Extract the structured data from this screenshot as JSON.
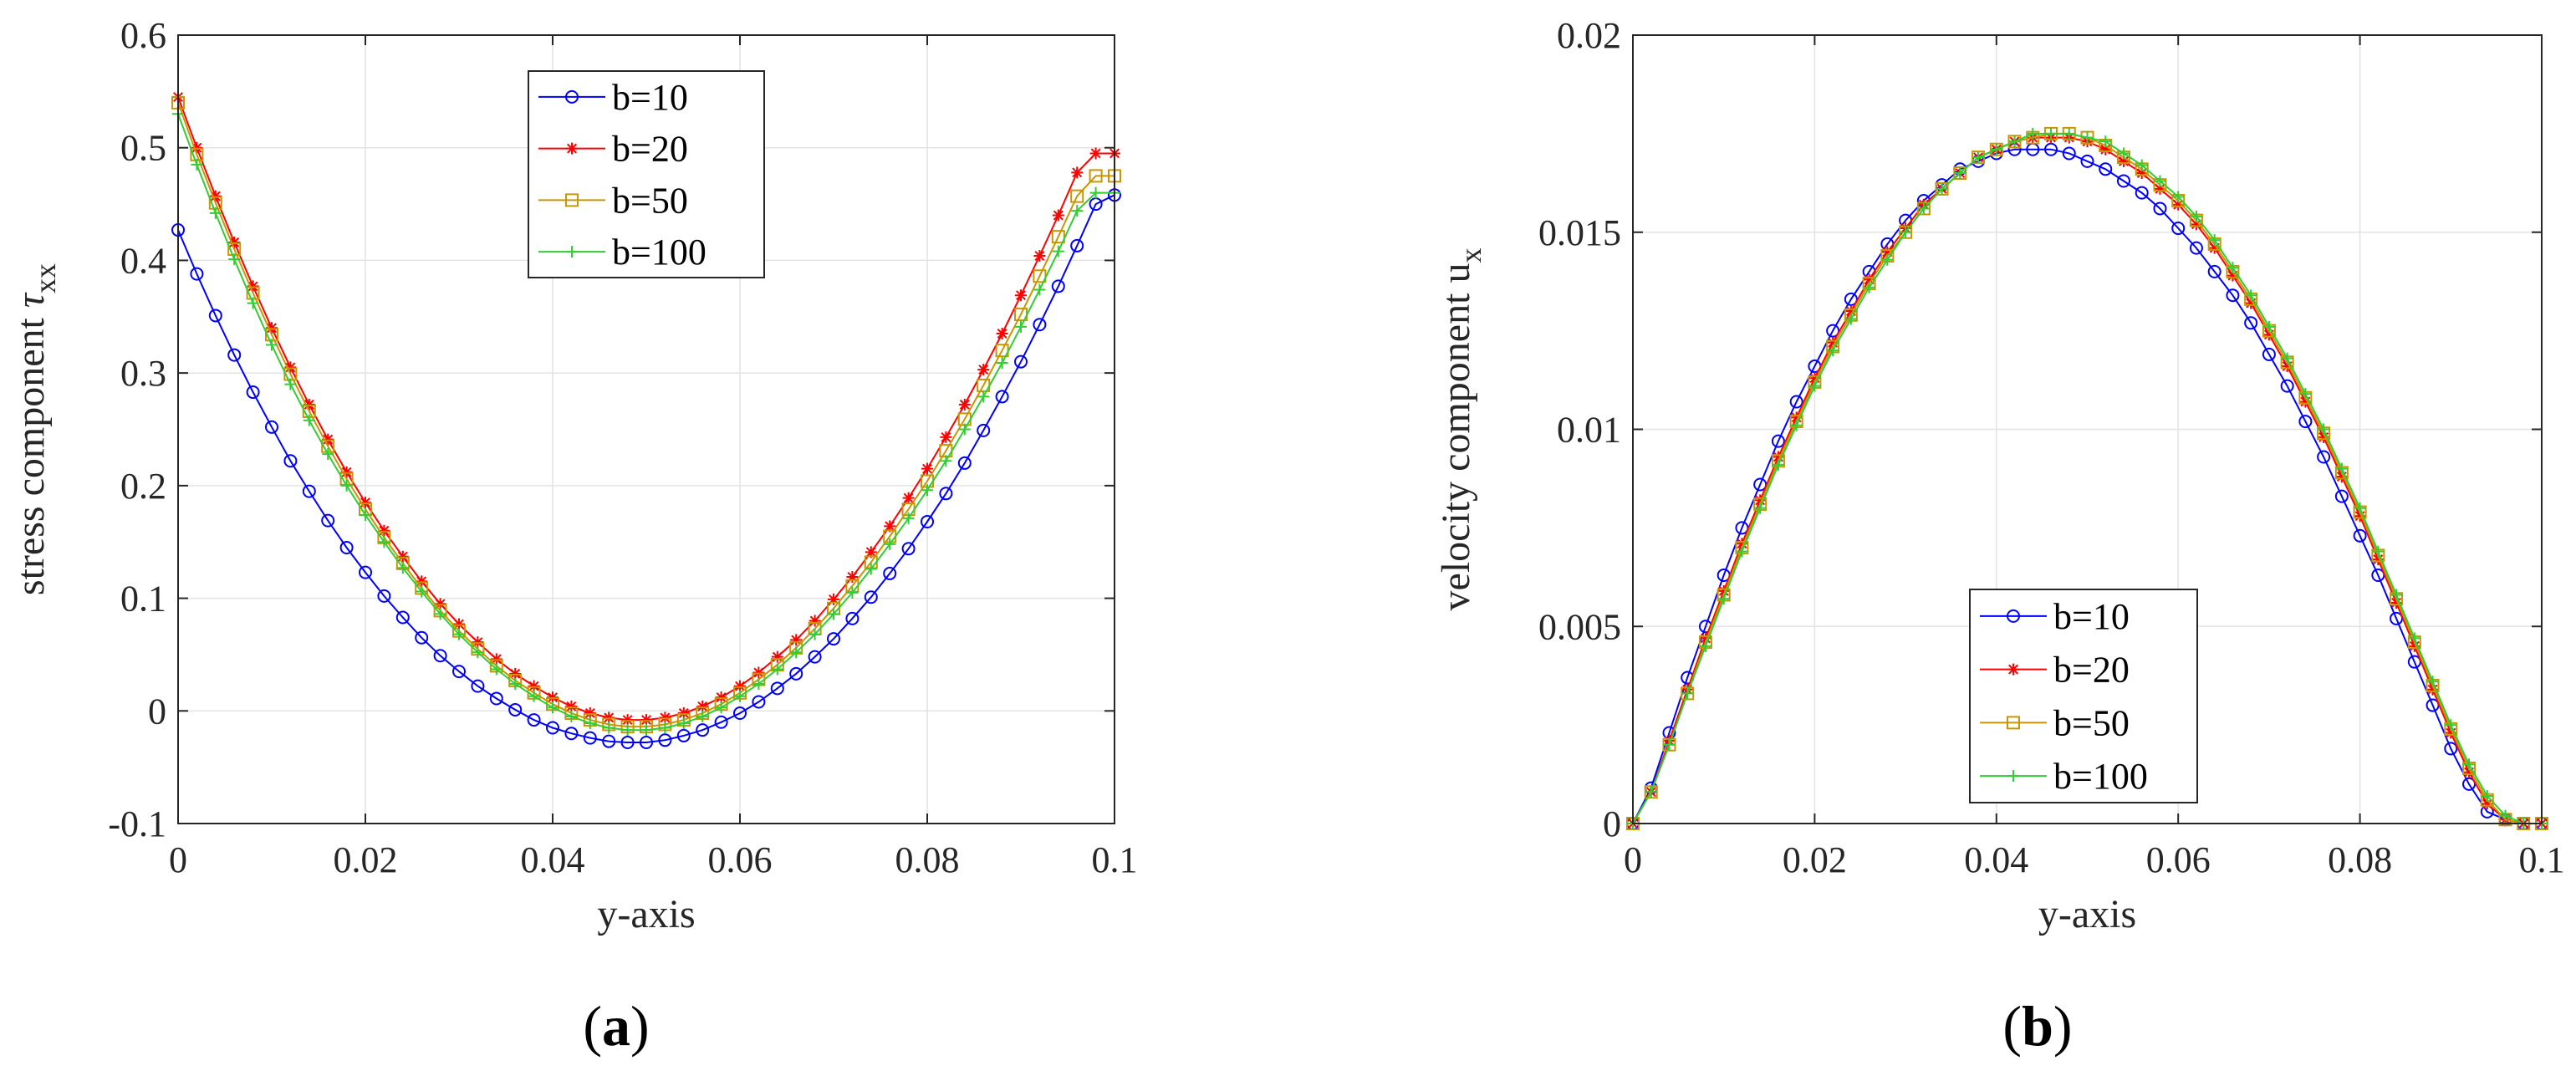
{
  "chart_data": [
    {
      "type": "line",
      "panel_label": {
        "open": "(",
        "letter": "a",
        "close": ")"
      },
      "xlabel": "y-axis",
      "ylabel": {
        "main": "stress component ",
        "symbol": "τ",
        "sub": "xx"
      },
      "xlim": [
        0,
        0.1
      ],
      "ylim": [
        -0.1,
        0.6
      ],
      "xticks": [
        0,
        0.02,
        0.04,
        0.06,
        0.08,
        0.1
      ],
      "xtick_labels": [
        "0",
        "0.02",
        "0.04",
        "0.06",
        "0.08",
        "0.1"
      ],
      "yticks": [
        -0.1,
        0,
        0.1,
        0.2,
        0.3,
        0.4,
        0.5,
        0.6
      ],
      "ytick_labels": [
        "-0.1",
        "0",
        "0.1",
        "0.2",
        "0.3",
        "0.4",
        "0.5",
        "0.6"
      ],
      "grid": true,
      "legend_position": "top-center",
      "x": [
        0,
        0.002,
        0.004,
        0.006,
        0.008,
        0.01,
        0.012,
        0.014,
        0.016,
        0.018,
        0.02,
        0.022,
        0.024,
        0.026,
        0.028,
        0.03,
        0.032,
        0.034,
        0.036,
        0.038,
        0.04,
        0.042,
        0.044,
        0.046,
        0.048,
        0.05,
        0.052,
        0.054,
        0.056,
        0.058,
        0.06,
        0.062,
        0.064,
        0.066,
        0.068,
        0.07,
        0.072,
        0.074,
        0.076,
        0.078,
        0.08,
        0.082,
        0.084,
        0.086,
        0.088,
        0.09,
        0.092,
        0.094,
        0.096,
        0.098,
        0.1
      ],
      "series": [
        {
          "name": "b=10",
          "color": "#0000ff",
          "marker": "circle",
          "values": [
            0.427,
            0.388,
            0.351,
            0.316,
            0.283,
            0.252,
            0.222,
            0.195,
            0.169,
            0.145,
            0.123,
            0.102,
            0.083,
            0.065,
            0.049,
            0.035,
            0.022,
            0.011,
            0.001,
            -0.008,
            -0.015,
            -0.02,
            -0.024,
            -0.027,
            -0.028,
            -0.028,
            -0.026,
            -0.022,
            -0.017,
            -0.01,
            -0.002,
            0.008,
            0.02,
            0.033,
            0.048,
            0.064,
            0.082,
            0.101,
            0.122,
            0.144,
            0.168,
            0.193,
            0.22,
            0.249,
            0.279,
            0.31,
            0.343,
            0.377,
            0.413,
            0.45,
            0.458
          ]
        },
        {
          "name": "b=20",
          "color": "#ff0000",
          "marker": "star",
          "values": [
            0.545,
            0.5,
            0.457,
            0.416,
            0.377,
            0.34,
            0.305,
            0.272,
            0.241,
            0.212,
            0.185,
            0.16,
            0.137,
            0.115,
            0.095,
            0.077,
            0.061,
            0.046,
            0.033,
            0.022,
            0.012,
            0.004,
            -0.002,
            -0.006,
            -0.008,
            -0.008,
            -0.006,
            -0.002,
            0.004,
            0.012,
            0.022,
            0.034,
            0.048,
            0.063,
            0.08,
            0.099,
            0.119,
            0.141,
            0.164,
            0.189,
            0.215,
            0.243,
            0.272,
            0.303,
            0.335,
            0.369,
            0.404,
            0.44,
            0.478,
            0.495,
            0.495
          ]
        },
        {
          "name": "b=50",
          "color": "#c89600",
          "marker": "square",
          "values": [
            0.54,
            0.494,
            0.451,
            0.41,
            0.371,
            0.334,
            0.299,
            0.266,
            0.235,
            0.206,
            0.179,
            0.154,
            0.131,
            0.109,
            0.089,
            0.071,
            0.055,
            0.04,
            0.027,
            0.016,
            0.006,
            -0.002,
            -0.008,
            -0.012,
            -0.014,
            -0.014,
            -0.012,
            -0.008,
            -0.002,
            0.006,
            0.016,
            0.028,
            0.041,
            0.056,
            0.073,
            0.091,
            0.111,
            0.132,
            0.155,
            0.179,
            0.204,
            0.231,
            0.259,
            0.289,
            0.32,
            0.352,
            0.386,
            0.421,
            0.457,
            0.475,
            0.475
          ]
        },
        {
          "name": "b=100",
          "color": "#32cd32",
          "marker": "plus",
          "values": [
            0.53,
            0.485,
            0.442,
            0.401,
            0.362,
            0.325,
            0.29,
            0.258,
            0.228,
            0.2,
            0.174,
            0.15,
            0.127,
            0.106,
            0.086,
            0.068,
            0.052,
            0.037,
            0.024,
            0.013,
            0.003,
            -0.005,
            -0.011,
            -0.015,
            -0.017,
            -0.017,
            -0.015,
            -0.011,
            -0.005,
            0.003,
            0.013,
            0.024,
            0.037,
            0.052,
            0.068,
            0.086,
            0.105,
            0.126,
            0.148,
            0.171,
            0.196,
            0.222,
            0.25,
            0.279,
            0.309,
            0.341,
            0.374,
            0.408,
            0.444,
            0.46,
            0.46
          ]
        }
      ]
    },
    {
      "type": "line",
      "panel_label": {
        "open": "(",
        "letter": "b",
        "close": ")"
      },
      "xlabel": "y-axis",
      "ylabel": {
        "main": "velocity component u",
        "symbol": "",
        "sub": "x"
      },
      "xlim": [
        0,
        0.1
      ],
      "ylim": [
        0,
        0.02
      ],
      "xticks": [
        0,
        0.02,
        0.04,
        0.06,
        0.08,
        0.1
      ],
      "xtick_labels": [
        "0",
        "0.02",
        "0.04",
        "0.06",
        "0.08",
        "0.1"
      ],
      "yticks": [
        0,
        0.005,
        0.01,
        0.015,
        0.02
      ],
      "ytick_labels": [
        "0",
        "0.005",
        "0.01",
        "0.015",
        "0.02"
      ],
      "grid": true,
      "legend_position": "bottom-center",
      "x": [
        0,
        0.002,
        0.004,
        0.006,
        0.008,
        0.01,
        0.012,
        0.014,
        0.016,
        0.018,
        0.02,
        0.022,
        0.024,
        0.026,
        0.028,
        0.03,
        0.032,
        0.034,
        0.036,
        0.038,
        0.04,
        0.042,
        0.044,
        0.046,
        0.048,
        0.05,
        0.052,
        0.054,
        0.056,
        0.058,
        0.06,
        0.062,
        0.064,
        0.066,
        0.068,
        0.07,
        0.072,
        0.074,
        0.076,
        0.078,
        0.08,
        0.082,
        0.084,
        0.086,
        0.088,
        0.09,
        0.092,
        0.094,
        0.096,
        0.098,
        0.1
      ],
      "series": [
        {
          "name": "b=10",
          "color": "#0000ff",
          "marker": "circle",
          "values": [
            0,
            0.0009,
            0.0023,
            0.0037,
            0.005,
            0.0063,
            0.0075,
            0.0086,
            0.0097,
            0.0107,
            0.0116,
            0.0125,
            0.0133,
            0.014,
            0.0147,
            0.0153,
            0.0158,
            0.0162,
            0.0166,
            0.0168,
            0.017,
            0.0171,
            0.0171,
            0.0171,
            0.017,
            0.0168,
            0.0166,
            0.0163,
            0.016,
            0.0156,
            0.0151,
            0.0146,
            0.014,
            0.0134,
            0.0127,
            0.0119,
            0.0111,
            0.0102,
            0.0093,
            0.0083,
            0.0073,
            0.0063,
            0.0052,
            0.0041,
            0.003,
            0.0019,
            0.001,
            0.0003,
            0.0001,
            0,
            0
          ]
        },
        {
          "name": "b=20",
          "color": "#ff0000",
          "marker": "star",
          "values": [
            0,
            0.0008,
            0.0021,
            0.0034,
            0.0047,
            0.0059,
            0.0071,
            0.0082,
            0.0093,
            0.0103,
            0.0113,
            0.0122,
            0.013,
            0.0138,
            0.0145,
            0.0151,
            0.0157,
            0.0161,
            0.0165,
            0.0169,
            0.0171,
            0.0173,
            0.0174,
            0.0174,
            0.0174,
            0.0173,
            0.0171,
            0.0168,
            0.0165,
            0.0161,
            0.0157,
            0.0152,
            0.0146,
            0.0139,
            0.0132,
            0.0124,
            0.0116,
            0.0107,
            0.0098,
            0.0088,
            0.0078,
            0.0067,
            0.0056,
            0.0045,
            0.0034,
            0.0023,
            0.0013,
            0.0005,
            0.0001,
            0,
            0
          ]
        },
        {
          "name": "b=50",
          "color": "#c89600",
          "marker": "square",
          "values": [
            0,
            0.0008,
            0.002,
            0.0033,
            0.0046,
            0.0058,
            0.007,
            0.0081,
            0.0092,
            0.0102,
            0.0112,
            0.0121,
            0.0129,
            0.0137,
            0.0144,
            0.015,
            0.0156,
            0.0161,
            0.0165,
            0.0169,
            0.0171,
            0.0173,
            0.0174,
            0.0175,
            0.0175,
            0.0174,
            0.0172,
            0.0169,
            0.0166,
            0.0162,
            0.0158,
            0.0153,
            0.0147,
            0.014,
            0.0133,
            0.0125,
            0.0117,
            0.0108,
            0.0099,
            0.0089,
            0.0079,
            0.0068,
            0.0057,
            0.0046,
            0.0035,
            0.0024,
            0.0014,
            0.0006,
            0.0001,
            0,
            0
          ]
        },
        {
          "name": "b=100",
          "color": "#32cd32",
          "marker": "plus",
          "values": [
            0,
            0.0008,
            0.002,
            0.0033,
            0.0045,
            0.0057,
            0.0069,
            0.008,
            0.0091,
            0.0101,
            0.0111,
            0.012,
            0.0128,
            0.0136,
            0.0143,
            0.015,
            0.0156,
            0.0161,
            0.0165,
            0.0169,
            0.0171,
            0.0173,
            0.0175,
            0.0175,
            0.0175,
            0.0174,
            0.0173,
            0.017,
            0.0167,
            0.0163,
            0.0159,
            0.0154,
            0.0148,
            0.0141,
            0.0134,
            0.0126,
            0.0118,
            0.0109,
            0.01,
            0.009,
            0.008,
            0.0069,
            0.0058,
            0.0047,
            0.0036,
            0.0025,
            0.0015,
            0.0007,
            0.0002,
            0,
            0
          ]
        }
      ]
    }
  ]
}
